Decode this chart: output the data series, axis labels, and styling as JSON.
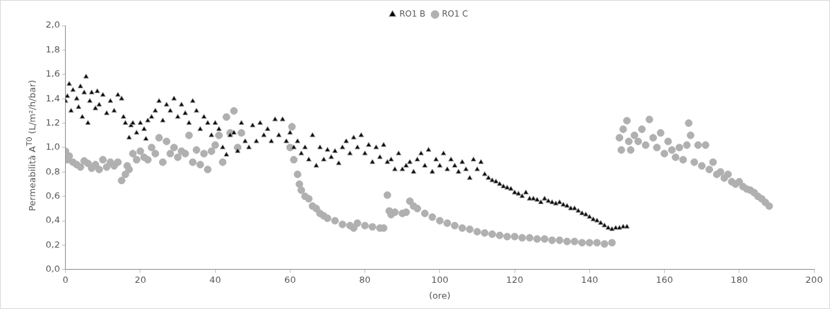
{
  "chart_data": {
    "type": "scatter",
    "xlabel": "(ore)",
    "ylabel": "Permeabilità A$^{T0}$ (L/m²/h/bar)",
    "xlim": [
      0,
      200
    ],
    "xticks": [
      0,
      20,
      40,
      60,
      80,
      100,
      120,
      140,
      160,
      180,
      200
    ],
    "ylim": [
      0,
      2
    ],
    "yticks": [
      {
        "value": 0,
        "label": "0,0"
      },
      {
        "value": 0.2,
        "label": "0,2"
      },
      {
        "value": 0.4,
        "label": "0,4"
      },
      {
        "value": 0.6,
        "label": "0,6"
      },
      {
        "value": 0.8,
        "label": "0,8"
      },
      {
        "value": 1,
        "label": "1,0"
      },
      {
        "value": 1.2,
        "label": "1,2"
      },
      {
        "value": 1.4,
        "label": "1,4"
      },
      {
        "value": 1.6,
        "label": "1,6"
      },
      {
        "value": 1.8,
        "label": "1,8"
      },
      {
        "value": 2,
        "label": "2,0"
      }
    ],
    "grid": false,
    "legend": "top",
    "series": [
      {
        "name": "RO1 B",
        "color": "#000000",
        "marker": "triangle",
        "x": [
          0,
          0.5,
          1,
          1.5,
          2,
          3,
          3.5,
          4,
          4.5,
          5,
          5.5,
          6,
          6.5,
          7,
          8,
          8.5,
          9,
          10,
          11,
          12,
          13,
          14,
          15,
          15.5,
          16,
          17,
          17.5,
          18,
          19,
          20,
          21,
          21.5,
          22,
          23,
          24,
          25,
          26,
          27,
          28,
          29,
          30,
          31,
          32,
          33,
          34,
          35,
          36,
          37,
          38,
          39,
          40,
          41,
          42,
          43,
          44,
          45,
          46,
          47,
          48,
          49,
          50,
          51,
          52,
          53,
          54,
          55,
          56,
          57,
          58,
          59,
          60,
          61,
          62,
          63,
          64,
          65,
          66,
          67,
          68,
          69,
          70,
          71,
          72,
          73,
          74,
          75,
          76,
          77,
          78,
          79,
          80,
          81,
          82,
          83,
          84,
          85,
          86,
          87,
          88,
          89,
          90,
          91,
          92,
          93,
          94,
          95,
          96,
          97,
          98,
          99,
          100,
          101,
          102,
          103,
          104,
          105,
          106,
          107,
          108,
          109,
          110,
          111,
          112,
          113,
          114,
          115,
          116,
          117,
          118,
          119,
          120,
          121,
          122,
          123,
          124,
          125,
          126,
          127,
          128,
          129,
          130,
          131,
          132,
          133,
          134,
          135,
          136,
          137,
          138,
          139,
          140,
          141,
          142,
          143,
          144,
          145,
          146,
          147,
          148,
          149,
          150
        ],
        "values": [
          1.38,
          1.42,
          1.52,
          1.3,
          1.47,
          1.4,
          1.33,
          1.5,
          1.25,
          1.45,
          1.58,
          1.2,
          1.38,
          1.45,
          1.32,
          1.46,
          1.35,
          1.43,
          1.28,
          1.38,
          1.3,
          1.43,
          1.4,
          1.25,
          1.2,
          1.08,
          1.18,
          1.2,
          1.12,
          1.2,
          1.15,
          1.07,
          1.22,
          1.25,
          1.3,
          1.38,
          1.22,
          1.35,
          1.3,
          1.4,
          1.25,
          1.35,
          1.28,
          1.2,
          1.38,
          1.3,
          1.15,
          1.25,
          1.2,
          1.1,
          1.2,
          1.15,
          1.0,
          0.94,
          1.1,
          1.12,
          0.97,
          1.2,
          1.05,
          1.0,
          1.18,
          1.05,
          1.2,
          1.1,
          1.15,
          1.05,
          1.23,
          1.1,
          1.23,
          1.05,
          1.12,
          1.0,
          1.05,
          0.95,
          1.0,
          0.9,
          1.1,
          0.85,
          1.0,
          0.9,
          0.98,
          0.92,
          0.97,
          0.87,
          1.0,
          1.05,
          0.95,
          1.08,
          1.0,
          1.1,
          0.95,
          1.02,
          0.88,
          1.0,
          0.92,
          1.02,
          0.88,
          0.9,
          0.82,
          0.95,
          0.82,
          0.85,
          0.88,
          0.8,
          0.9,
          0.95,
          0.85,
          0.98,
          0.8,
          0.9,
          0.85,
          0.95,
          0.82,
          0.9,
          0.85,
          0.8,
          0.88,
          0.82,
          0.75,
          0.9,
          0.82,
          0.88,
          0.78,
          0.75,
          0.73,
          0.72,
          0.7,
          0.68,
          0.67,
          0.66,
          0.63,
          0.62,
          0.6,
          0.63,
          0.58,
          0.58,
          0.57,
          0.55,
          0.58,
          0.56,
          0.55,
          0.54,
          0.55,
          0.53,
          0.52,
          0.5,
          0.5,
          0.48,
          0.46,
          0.45,
          0.43,
          0.41,
          0.4,
          0.38,
          0.36,
          0.34,
          0.33,
          0.34,
          0.34,
          0.35,
          0.35
        ]
      },
      {
        "name": "RO1 C",
        "color": "#b0b0b0",
        "marker": "circle",
        "x": [
          0,
          0.5,
          1,
          2,
          3,
          4,
          5,
          6,
          7,
          8,
          9,
          10,
          11,
          12,
          13,
          14,
          15,
          16,
          16.5,
          17,
          18,
          19,
          20,
          21,
          22,
          23,
          24,
          25,
          26,
          27,
          28,
          29,
          30,
          31,
          32,
          33,
          34,
          35,
          36,
          37,
          38,
          39,
          40,
          41,
          42,
          43,
          44,
          45,
          46,
          47,
          60,
          60.5,
          61,
          62,
          62.5,
          63,
          64,
          65,
          66,
          67,
          68,
          69,
          70,
          72,
          74,
          76,
          77,
          78,
          80,
          82,
          84,
          85,
          86,
          86.5,
          87,
          88,
          90,
          91,
          92,
          93,
          94,
          96,
          98,
          100,
          102,
          104,
          106,
          108,
          110,
          112,
          114,
          116,
          118,
          120,
          122,
          124,
          126,
          128,
          130,
          132,
          134,
          136,
          138,
          140,
          142,
          144,
          146,
          148,
          148.5,
          149,
          150,
          150.5,
          151,
          152,
          153,
          154,
          155,
          156,
          157,
          158,
          159,
          160,
          161,
          162,
          163,
          164,
          165,
          166,
          166.5,
          167,
          168,
          169,
          170,
          171,
          172,
          173,
          174,
          175,
          176,
          177,
          178,
          179,
          180,
          181,
          182,
          183,
          184,
          185,
          186,
          187,
          188
        ],
        "values": [
          0.97,
          0.9,
          0.93,
          0.88,
          0.86,
          0.84,
          0.89,
          0.87,
          0.83,
          0.86,
          0.82,
          0.9,
          0.84,
          0.88,
          0.85,
          0.88,
          0.73,
          0.78,
          0.85,
          0.82,
          0.95,
          0.9,
          0.97,
          0.92,
          0.9,
          1.0,
          0.95,
          1.08,
          0.88,
          1.05,
          0.95,
          1.0,
          0.92,
          0.97,
          0.95,
          1.1,
          0.88,
          0.98,
          0.86,
          0.95,
          0.82,
          0.97,
          1.02,
          1.1,
          0.88,
          1.25,
          1.12,
          1.3,
          1.0,
          1.12,
          1.0,
          1.17,
          0.9,
          0.78,
          0.7,
          0.65,
          0.6,
          0.58,
          0.52,
          0.5,
          0.46,
          0.44,
          0.42,
          0.4,
          0.37,
          0.36,
          0.34,
          0.38,
          0.36,
          0.35,
          0.34,
          0.34,
          0.61,
          0.48,
          0.45,
          0.47,
          0.46,
          0.47,
          0.56,
          0.52,
          0.5,
          0.46,
          0.43,
          0.4,
          0.38,
          0.36,
          0.34,
          0.33,
          0.31,
          0.3,
          0.29,
          0.28,
          0.27,
          0.27,
          0.26,
          0.26,
          0.25,
          0.25,
          0.24,
          0.24,
          0.23,
          0.23,
          0.22,
          0.22,
          0.22,
          0.21,
          0.22,
          1.08,
          0.98,
          1.15,
          1.22,
          1.05,
          0.98,
          1.1,
          1.05,
          1.15,
          1.02,
          1.23,
          1.08,
          1.0,
          1.12,
          0.95,
          1.05,
          0.98,
          0.92,
          1.0,
          0.9,
          1.02,
          1.2,
          1.1,
          0.88,
          1.02,
          0.85,
          1.02,
          0.82,
          0.88,
          0.78,
          0.8,
          0.75,
          0.78,
          0.72,
          0.7,
          0.72,
          0.68,
          0.66,
          0.65,
          0.63,
          0.6,
          0.58,
          0.55,
          0.52
        ]
      }
    ]
  }
}
